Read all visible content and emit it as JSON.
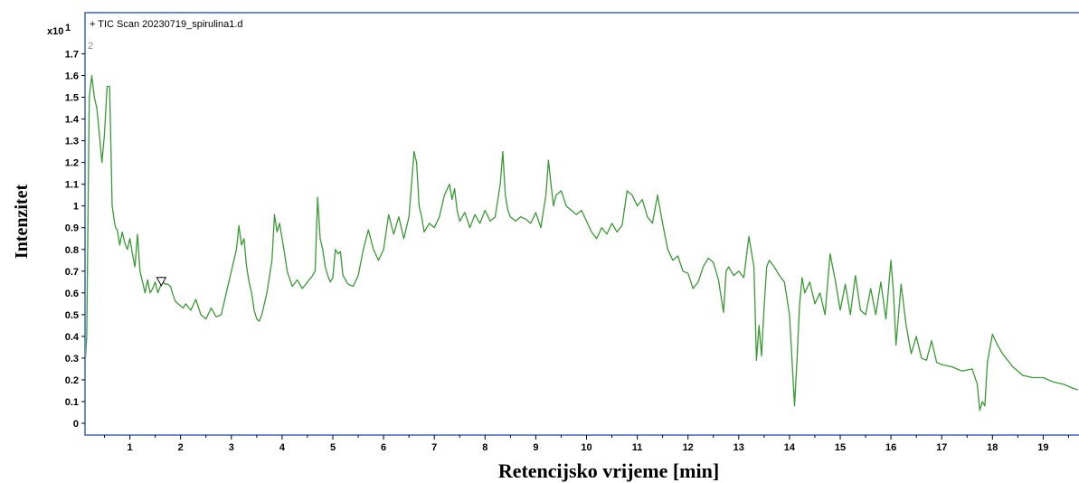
{
  "colors": {
    "frame": "#3c64c0",
    "trace": "#3a9a35",
    "text": "#000000"
  },
  "header": {
    "multiplier_base": "x10",
    "multiplier_exp": "1",
    "trace_label": "+ TIC Scan 20230719_spirulina1.d",
    "sub_label": "2"
  },
  "chart_data": {
    "type": "line",
    "xlabel": "Retencijsko vrijeme [min]",
    "ylabel": "Intenzitet",
    "xlim": [
      0,
      19.75
    ],
    "ylim": [
      0,
      1.75
    ],
    "xticks": [
      1,
      2,
      3,
      4,
      5,
      6,
      7,
      8,
      9,
      10,
      11,
      12,
      13,
      14,
      15,
      16,
      17,
      18,
      19
    ],
    "yticks": [
      0,
      0.1,
      0.2,
      0.3,
      0.4,
      0.5,
      0.6,
      0.7,
      0.8,
      0.9,
      1,
      1.1,
      1.2,
      1.3,
      1.4,
      1.5,
      1.6,
      1.7
    ],
    "ytick_labels": [
      "0",
      "0.1",
      "0.2",
      "0.3",
      "0.4",
      "0.5",
      "0.6",
      "0.7",
      "0.8",
      "0.9",
      "1",
      "1.1",
      "1.2",
      "1.3",
      "1.4",
      "1.5",
      "1.6",
      "1.7"
    ],
    "grid": false,
    "marker": {
      "x": 1.62,
      "y": 0.65,
      "shape": "down-triangle"
    },
    "series": [
      {
        "x": [
          0,
          0.08,
          0.12,
          0.15,
          0.2,
          0.25,
          0.3,
          0.35,
          0.4,
          0.45,
          0.5,
          0.55,
          0.6,
          0.65,
          0.7,
          0.72,
          0.75,
          0.8,
          0.85,
          0.9,
          0.95,
          1.0,
          1.05,
          1.1,
          1.15,
          1.2,
          1.25,
          1.3,
          1.35,
          1.4,
          1.45,
          1.5,
          1.55,
          1.6,
          1.65,
          1.7,
          1.75,
          1.8,
          1.85,
          1.9,
          1.95,
          2.0,
          2.05,
          2.1,
          2.2,
          2.3,
          2.4,
          2.5,
          2.6,
          2.7,
          2.8,
          2.9,
          3.0,
          3.1,
          3.15,
          3.2,
          3.25,
          3.3,
          3.35,
          3.4,
          3.45,
          3.5,
          3.55,
          3.6,
          3.65,
          3.7,
          3.8,
          3.85,
          3.9,
          3.95,
          4.0,
          4.05,
          4.1,
          4.2,
          4.3,
          4.4,
          4.5,
          4.6,
          4.65,
          4.7,
          4.75,
          4.8,
          4.85,
          4.9,
          4.95,
          5.0,
          5.05,
          5.1,
          5.15,
          5.2,
          5.3,
          5.4,
          5.5,
          5.6,
          5.7,
          5.8,
          5.9,
          6.0,
          6.1,
          6.2,
          6.3,
          6.4,
          6.5,
          6.6,
          6.65,
          6.7,
          6.75,
          6.8,
          6.9,
          7.0,
          7.1,
          7.2,
          7.3,
          7.35,
          7.4,
          7.45,
          7.5,
          7.6,
          7.7,
          7.8,
          7.9,
          8.0,
          8.1,
          8.2,
          8.3,
          8.35,
          8.4,
          8.45,
          8.5,
          8.6,
          8.7,
          8.8,
          8.9,
          9.0,
          9.1,
          9.2,
          9.25,
          9.3,
          9.35,
          9.4,
          9.5,
          9.6,
          9.7,
          9.8,
          9.9,
          10.0,
          10.1,
          10.2,
          10.3,
          10.4,
          10.5,
          10.6,
          10.7,
          10.8,
          10.9,
          11.0,
          11.1,
          11.2,
          11.3,
          11.4,
          11.5,
          11.6,
          11.7,
          11.8,
          11.9,
          12.0,
          12.1,
          12.2,
          12.3,
          12.4,
          12.5,
          12.6,
          12.7,
          12.75,
          12.8,
          12.9,
          13.0,
          13.1,
          13.2,
          13.3,
          13.35,
          13.4,
          13.45,
          13.5,
          13.55,
          13.6,
          13.7,
          13.8,
          13.9,
          14.0,
          14.1,
          14.15,
          14.2,
          14.25,
          14.3,
          14.4,
          14.5,
          14.6,
          14.7,
          14.8,
          14.9,
          15.0,
          15.1,
          15.2,
          15.3,
          15.4,
          15.5,
          15.6,
          15.7,
          15.8,
          15.9,
          16.0,
          16.05,
          16.1,
          16.2,
          16.3,
          16.4,
          16.5,
          16.6,
          16.7,
          16.8,
          16.9,
          17.0,
          17.2,
          17.4,
          17.6,
          17.7,
          17.75,
          17.8,
          17.85,
          17.9,
          18.0,
          18.1,
          18.2,
          18.3,
          18.4,
          18.5,
          18.6,
          18.8,
          19.0,
          19.2,
          19.4,
          19.6,
          19.75
        ],
        "y": [
          0.05,
          0.04,
          0.28,
          0.4,
          1.5,
          1.6,
          1.5,
          1.45,
          1.33,
          1.2,
          1.33,
          1.55,
          1.55,
          1.0,
          0.92,
          0.9,
          0.89,
          0.82,
          0.88,
          0.83,
          0.8,
          0.85,
          0.78,
          0.72,
          0.87,
          0.7,
          0.65,
          0.6,
          0.66,
          0.6,
          0.62,
          0.65,
          0.6,
          0.63,
          0.65,
          0.64,
          0.64,
          0.63,
          0.59,
          0.56,
          0.55,
          0.54,
          0.53,
          0.55,
          0.52,
          0.57,
          0.5,
          0.48,
          0.53,
          0.49,
          0.5,
          0.6,
          0.7,
          0.8,
          0.91,
          0.82,
          0.85,
          0.72,
          0.65,
          0.6,
          0.52,
          0.48,
          0.47,
          0.5,
          0.55,
          0.6,
          0.75,
          0.96,
          0.88,
          0.92,
          0.85,
          0.78,
          0.7,
          0.63,
          0.66,
          0.62,
          0.65,
          0.68,
          0.7,
          1.04,
          0.85,
          0.8,
          0.72,
          0.68,
          0.65,
          0.67,
          0.8,
          0.78,
          0.79,
          0.68,
          0.64,
          0.63,
          0.68,
          0.8,
          0.89,
          0.8,
          0.75,
          0.8,
          0.96,
          0.87,
          0.95,
          0.85,
          0.95,
          1.25,
          1.2,
          1.0,
          0.95,
          0.88,
          0.92,
          0.9,
          0.95,
          1.05,
          1.1,
          1.03,
          1.08,
          0.98,
          0.93,
          0.97,
          0.9,
          0.96,
          0.92,
          0.98,
          0.93,
          0.95,
          1.1,
          1.25,
          1.05,
          0.98,
          0.95,
          0.93,
          0.95,
          0.94,
          0.92,
          0.97,
          0.9,
          1.05,
          1.21,
          1.1,
          1.0,
          1.05,
          1.07,
          1.0,
          0.98,
          0.96,
          0.98,
          0.93,
          0.88,
          0.85,
          0.9,
          0.87,
          0.92,
          0.88,
          0.91,
          1.07,
          1.05,
          1.0,
          1.03,
          0.95,
          0.92,
          1.05,
          0.92,
          0.8,
          0.75,
          0.77,
          0.7,
          0.69,
          0.62,
          0.65,
          0.72,
          0.76,
          0.74,
          0.66,
          0.51,
          0.7,
          0.72,
          0.68,
          0.7,
          0.67,
          0.86,
          0.72,
          0.29,
          0.45,
          0.31,
          0.54,
          0.72,
          0.75,
          0.72,
          0.68,
          0.65,
          0.5,
          0.08,
          0.3,
          0.55,
          0.67,
          0.6,
          0.65,
          0.55,
          0.6,
          0.5,
          0.78,
          0.66,
          0.52,
          0.64,
          0.5,
          0.68,
          0.52,
          0.5,
          0.62,
          0.5,
          0.65,
          0.48,
          0.75,
          0.6,
          0.36,
          0.64,
          0.45,
          0.32,
          0.4,
          0.3,
          0.29,
          0.38,
          0.28,
          0.27,
          0.26,
          0.24,
          0.25,
          0.18,
          0.06,
          0.1,
          0.08,
          0.28,
          0.41,
          0.36,
          0.32,
          0.29,
          0.26,
          0.24,
          0.22,
          0.21,
          0.21,
          0.19,
          0.18,
          0.16,
          0.15
        ]
      }
    ]
  }
}
